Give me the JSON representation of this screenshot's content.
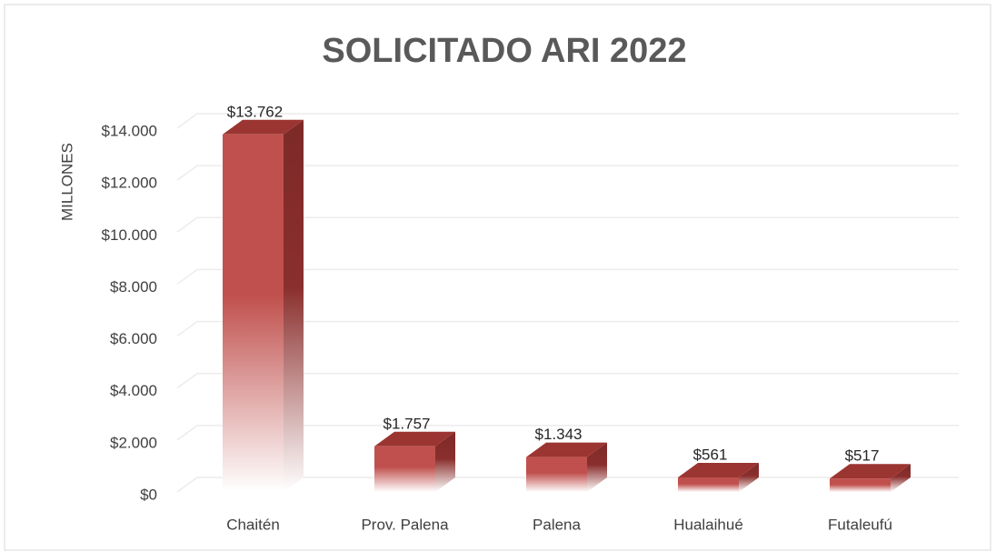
{
  "chart_data": {
    "type": "bar",
    "title": "SOLICITADO ARI 2022",
    "y_label": "MILLONES",
    "categories": [
      "Chaitén",
      "Prov. Palena",
      "Palena",
      "Hualaihué",
      "Futaleufú"
    ],
    "values": [
      13762,
      1757,
      1343,
      561,
      517
    ],
    "value_labels": [
      "$13.762",
      "$1.757",
      "$1.343",
      "$561",
      "$517"
    ],
    "color": "#c0504d",
    "ylim": [
      0,
      14000
    ],
    "yticks": [
      {
        "value": 0,
        "label": "$0"
      },
      {
        "value": 2000,
        "label": "$2.000"
      },
      {
        "value": 4000,
        "label": "$4.000"
      },
      {
        "value": 6000,
        "label": "$6.000"
      },
      {
        "value": 8000,
        "label": "$8.000"
      },
      {
        "value": 10000,
        "label": "$10.000"
      },
      {
        "value": 12000,
        "label": "$12.000"
      },
      {
        "value": 14000,
        "label": "$14.000"
      }
    ],
    "grid": true
  }
}
